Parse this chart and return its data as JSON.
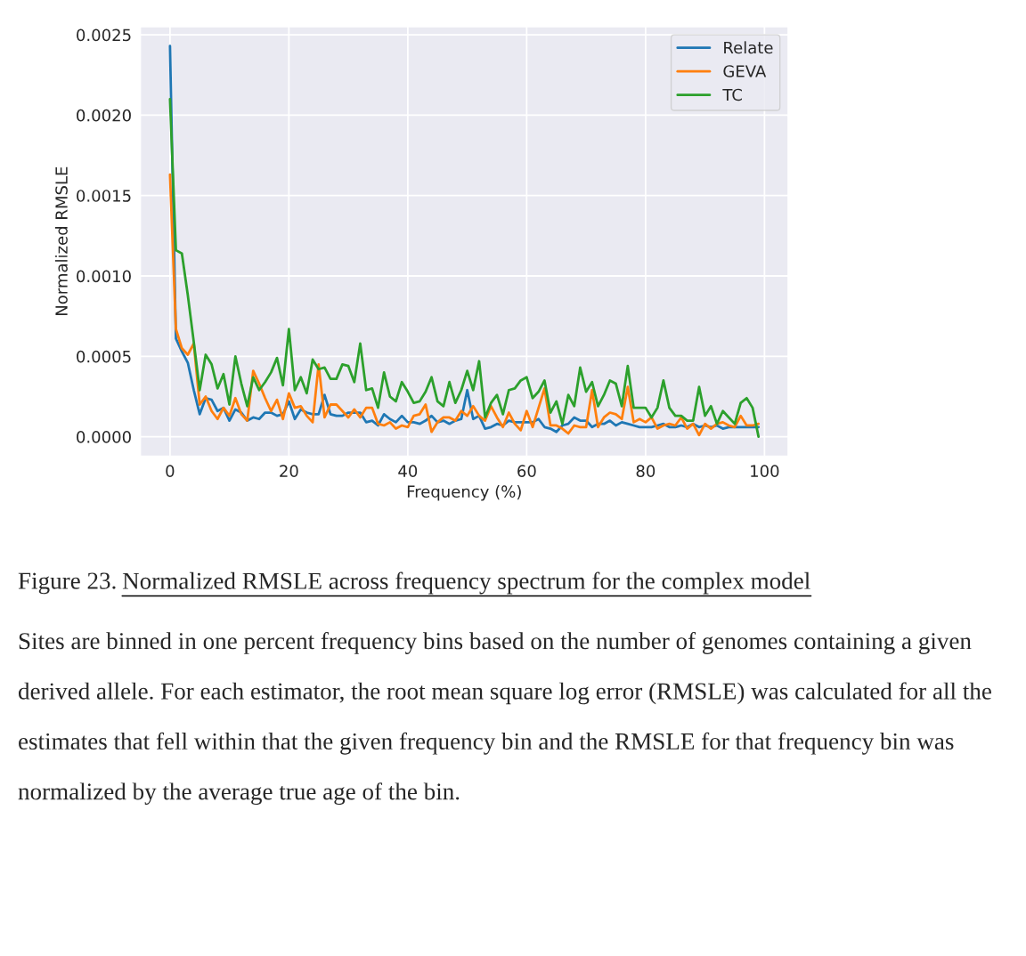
{
  "chart_data": {
    "type": "line",
    "xlabel": "Frequency (%)",
    "ylabel": "Normalized RMSLE",
    "x": [
      0,
      1,
      2,
      3,
      4,
      5,
      6,
      7,
      8,
      9,
      10,
      11,
      12,
      13,
      14,
      15,
      16,
      17,
      18,
      19,
      20,
      21,
      22,
      23,
      24,
      25,
      26,
      27,
      28,
      29,
      30,
      31,
      32,
      33,
      34,
      35,
      36,
      37,
      38,
      39,
      40,
      41,
      42,
      43,
      44,
      45,
      46,
      47,
      48,
      49,
      50,
      51,
      52,
      53,
      54,
      55,
      56,
      57,
      58,
      59,
      60,
      61,
      62,
      63,
      64,
      65,
      66,
      67,
      68,
      69,
      70,
      71,
      72,
      73,
      74,
      75,
      76,
      77,
      78,
      79,
      80,
      81,
      82,
      83,
      84,
      85,
      86,
      87,
      88,
      89,
      90,
      91,
      92,
      93,
      94,
      95,
      96,
      97,
      98,
      99
    ],
    "series": [
      {
        "name": "Relate",
        "color": "#1f77b4",
        "values": [
          0.00243,
          0.00061,
          0.00053,
          0.00046,
          0.00029,
          0.00014,
          0.00024,
          0.00023,
          0.00016,
          0.00018,
          0.0001,
          0.00017,
          0.00015,
          0.0001,
          0.00012,
          0.00011,
          0.00015,
          0.00015,
          0.00013,
          0.00014,
          0.00022,
          0.00011,
          0.00017,
          0.00015,
          0.00014,
          0.00014,
          0.00026,
          0.00014,
          0.00013,
          0.00013,
          0.00015,
          0.00015,
          0.00015,
          9e-05,
          0.0001,
          7e-05,
          0.00014,
          0.00011,
          9e-05,
          0.00013,
          9e-05,
          9e-05,
          8e-05,
          0.0001,
          0.00013,
          9e-05,
          0.0001,
          8e-05,
          0.0001,
          0.00011,
          0.00029,
          0.00011,
          0.00013,
          5e-05,
          6e-05,
          8e-05,
          7e-05,
          0.0001,
          9e-05,
          9e-05,
          9e-05,
          9e-05,
          0.00011,
          6e-05,
          5e-05,
          3e-05,
          7e-05,
          8e-05,
          0.00012,
          0.0001,
          0.0001,
          6e-05,
          8e-05,
          8e-05,
          0.0001,
          7e-05,
          9e-05,
          8e-05,
          7e-05,
          6e-05,
          6e-05,
          6e-05,
          7e-05,
          8e-05,
          6e-05,
          6e-05,
          7e-05,
          6e-05,
          8e-05,
          6e-05,
          7e-05,
          6e-05,
          7e-05,
          5e-05,
          6e-05,
          6e-05,
          6e-05,
          6e-05,
          6e-05,
          6e-05
        ]
      },
      {
        "name": "GEVA",
        "color": "#ff7f0e",
        "values": [
          0.00163,
          0.00067,
          0.00055,
          0.00051,
          0.00058,
          0.0002,
          0.00025,
          0.00016,
          0.00011,
          0.00018,
          0.00013,
          0.00024,
          0.00014,
          0.0001,
          0.00041,
          0.00033,
          0.00024,
          0.00016,
          0.00023,
          0.00011,
          0.00027,
          0.00018,
          0.00019,
          0.00013,
          9e-05,
          0.00045,
          0.00012,
          0.0002,
          0.0002,
          0.00016,
          0.00012,
          0.00017,
          0.00012,
          0.00018,
          0.00018,
          8e-05,
          7e-05,
          9e-05,
          5e-05,
          7e-05,
          6e-05,
          0.00013,
          0.00014,
          0.0002,
          3e-05,
          9e-05,
          0.00012,
          0.00012,
          0.0001,
          0.00016,
          0.00013,
          0.00019,
          0.00013,
          0.0001,
          0.00019,
          0.00012,
          6e-05,
          0.00015,
          8e-05,
          4e-05,
          0.00016,
          6e-05,
          0.00018,
          0.0003,
          7e-05,
          7e-05,
          5e-05,
          2e-05,
          7e-05,
          6e-05,
          6e-05,
          0.00029,
          6e-05,
          0.00012,
          0.00015,
          0.00014,
          0.00011,
          0.00031,
          9e-05,
          0.00011,
          9e-05,
          0.00012,
          5e-05,
          7e-05,
          8e-05,
          7e-05,
          0.00012,
          5e-05,
          8e-05,
          1e-05,
          8e-05,
          5e-05,
          8e-05,
          9e-05,
          7e-05,
          6e-05,
          0.00013,
          7e-05,
          7e-05,
          8e-05
        ]
      },
      {
        "name": "TC",
        "color": "#2ca02c",
        "values": [
          0.0021,
          0.00116,
          0.00114,
          0.00088,
          0.00059,
          0.00029,
          0.00051,
          0.00045,
          0.0003,
          0.00039,
          0.0002,
          0.0005,
          0.00033,
          0.00019,
          0.00037,
          0.00029,
          0.00034,
          0.0004,
          0.00049,
          0.00032,
          0.00067,
          0.00029,
          0.00037,
          0.00027,
          0.00048,
          0.00042,
          0.00043,
          0.00036,
          0.00036,
          0.00045,
          0.00044,
          0.00034,
          0.00058,
          0.00029,
          0.0003,
          0.00018,
          0.0004,
          0.00025,
          0.00022,
          0.00034,
          0.00028,
          0.00021,
          0.00022,
          0.00028,
          0.00037,
          0.00022,
          0.00019,
          0.00034,
          0.00021,
          0.00029,
          0.00041,
          0.00029,
          0.00047,
          0.00012,
          0.00021,
          0.00026,
          0.00014,
          0.00029,
          0.0003,
          0.00035,
          0.00037,
          0.00024,
          0.00028,
          0.00035,
          0.00015,
          0.00022,
          8e-05,
          0.00026,
          0.00019,
          0.00043,
          0.00028,
          0.00034,
          0.00019,
          0.00026,
          0.00035,
          0.00033,
          0.00019,
          0.00044,
          0.00018,
          0.00018,
          0.00018,
          0.00012,
          0.00018,
          0.00035,
          0.00018,
          0.00013,
          0.00013,
          0.0001,
          0.0001,
          0.00031,
          0.00013,
          0.00019,
          8e-05,
          0.00016,
          0.00012,
          8e-05,
          0.00021,
          0.00024,
          0.00018,
          0.0
        ]
      }
    ],
    "xlim": [
      -4.95,
      103.95
    ],
    "xticks": [
      0,
      20,
      40,
      60,
      80,
      100
    ],
    "ylim": [
      -0.00012,
      0.00255
    ],
    "yticks": [
      {
        "value": 0,
        "label": "0.0000"
      },
      {
        "value": 0.0005,
        "label": "0.0005"
      },
      {
        "value": 0.001,
        "label": "0.0010"
      },
      {
        "value": 0.0015,
        "label": "0.0015"
      },
      {
        "value": 0.002,
        "label": "0.0020"
      },
      {
        "value": 0.0025,
        "label": "0.0025"
      }
    ],
    "grid": true,
    "legend": "top right",
    "line_style": "solid",
    "annotations": [
      "Figure 23.",
      "Normalized RMSLE across frequency spectrum for the complex model",
      "Sites are binned in one percent frequency bins based on the number of genomes containing a given derived allele. For each estimator, the root mean square log error (RMSLE) was calculated for all the estimates that fell within that the given frequency bin and the RMSLE for that frequency bin was normalized by the average true age of the bin."
    ]
  }
}
